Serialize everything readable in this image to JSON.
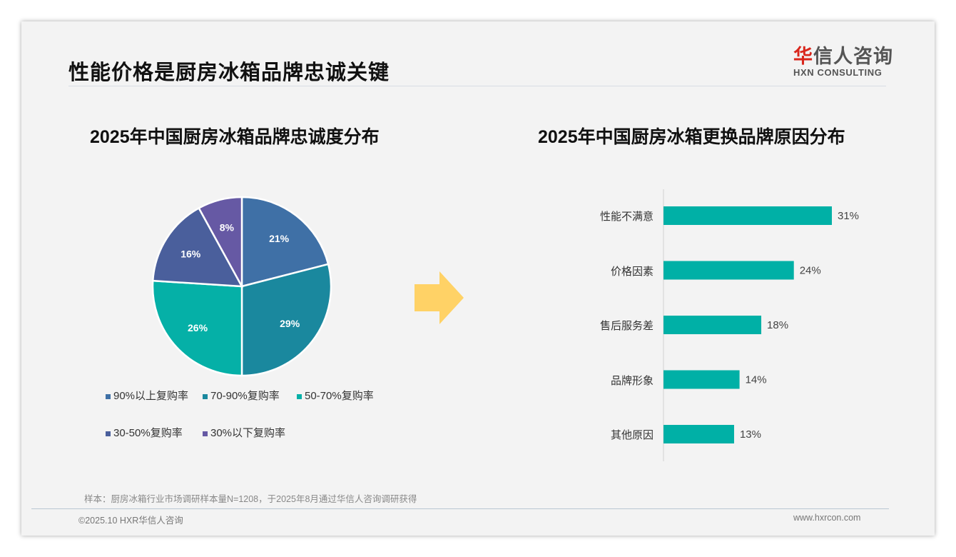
{
  "header": {
    "title": "性能价格是厨房冰箱品牌忠诚关键"
  },
  "logo": {
    "cn_red": "华",
    "cn_rest": "信人咨询",
    "en": "HXN CONSULTING"
  },
  "colors": {
    "bar": "#00b0a6",
    "arrow": "#ffd266"
  },
  "chart_data": [
    {
      "type": "pie",
      "title": "2025年中国厨房冰箱品牌忠诚度分布",
      "legend_position": "bottom",
      "slices": [
        {
          "label": "90%以上复购率",
          "value": 21,
          "display": "21%",
          "color": "#3f70a6"
        },
        {
          "label": "70-90%复购率",
          "value": 29,
          "display": "29%",
          "color": "#1a889e"
        },
        {
          "label": "50-70%复购率",
          "value": 26,
          "display": "26%",
          "color": "#05b0a7"
        },
        {
          "label": "30-50%复购率",
          "value": 16,
          "display": "16%",
          "color": "#4a5f9c"
        },
        {
          "label": "30%以下复购率",
          "value": 8,
          "display": "8%",
          "color": "#6659a4"
        }
      ]
    },
    {
      "type": "bar",
      "orientation": "horizontal",
      "title": "2025年中国厨房冰箱更换品牌原因分布",
      "categories": [
        "性能不满意",
        "价格因素",
        "售后服务差",
        "品牌形象",
        "其他原因"
      ],
      "values": [
        31,
        24,
        18,
        14,
        13
      ],
      "labels": [
        "31%",
        "24%",
        "18%",
        "14%",
        "13%"
      ],
      "xlim": [
        0,
        35
      ]
    }
  ],
  "footer": {
    "note": "样本：厨房冰箱行业市场调研样本量N=1208，于2025年8月通过华信人咨询调研获得",
    "copyright": "©2025.10 HXR华信人咨询",
    "website": "www.hxrcon.com"
  }
}
